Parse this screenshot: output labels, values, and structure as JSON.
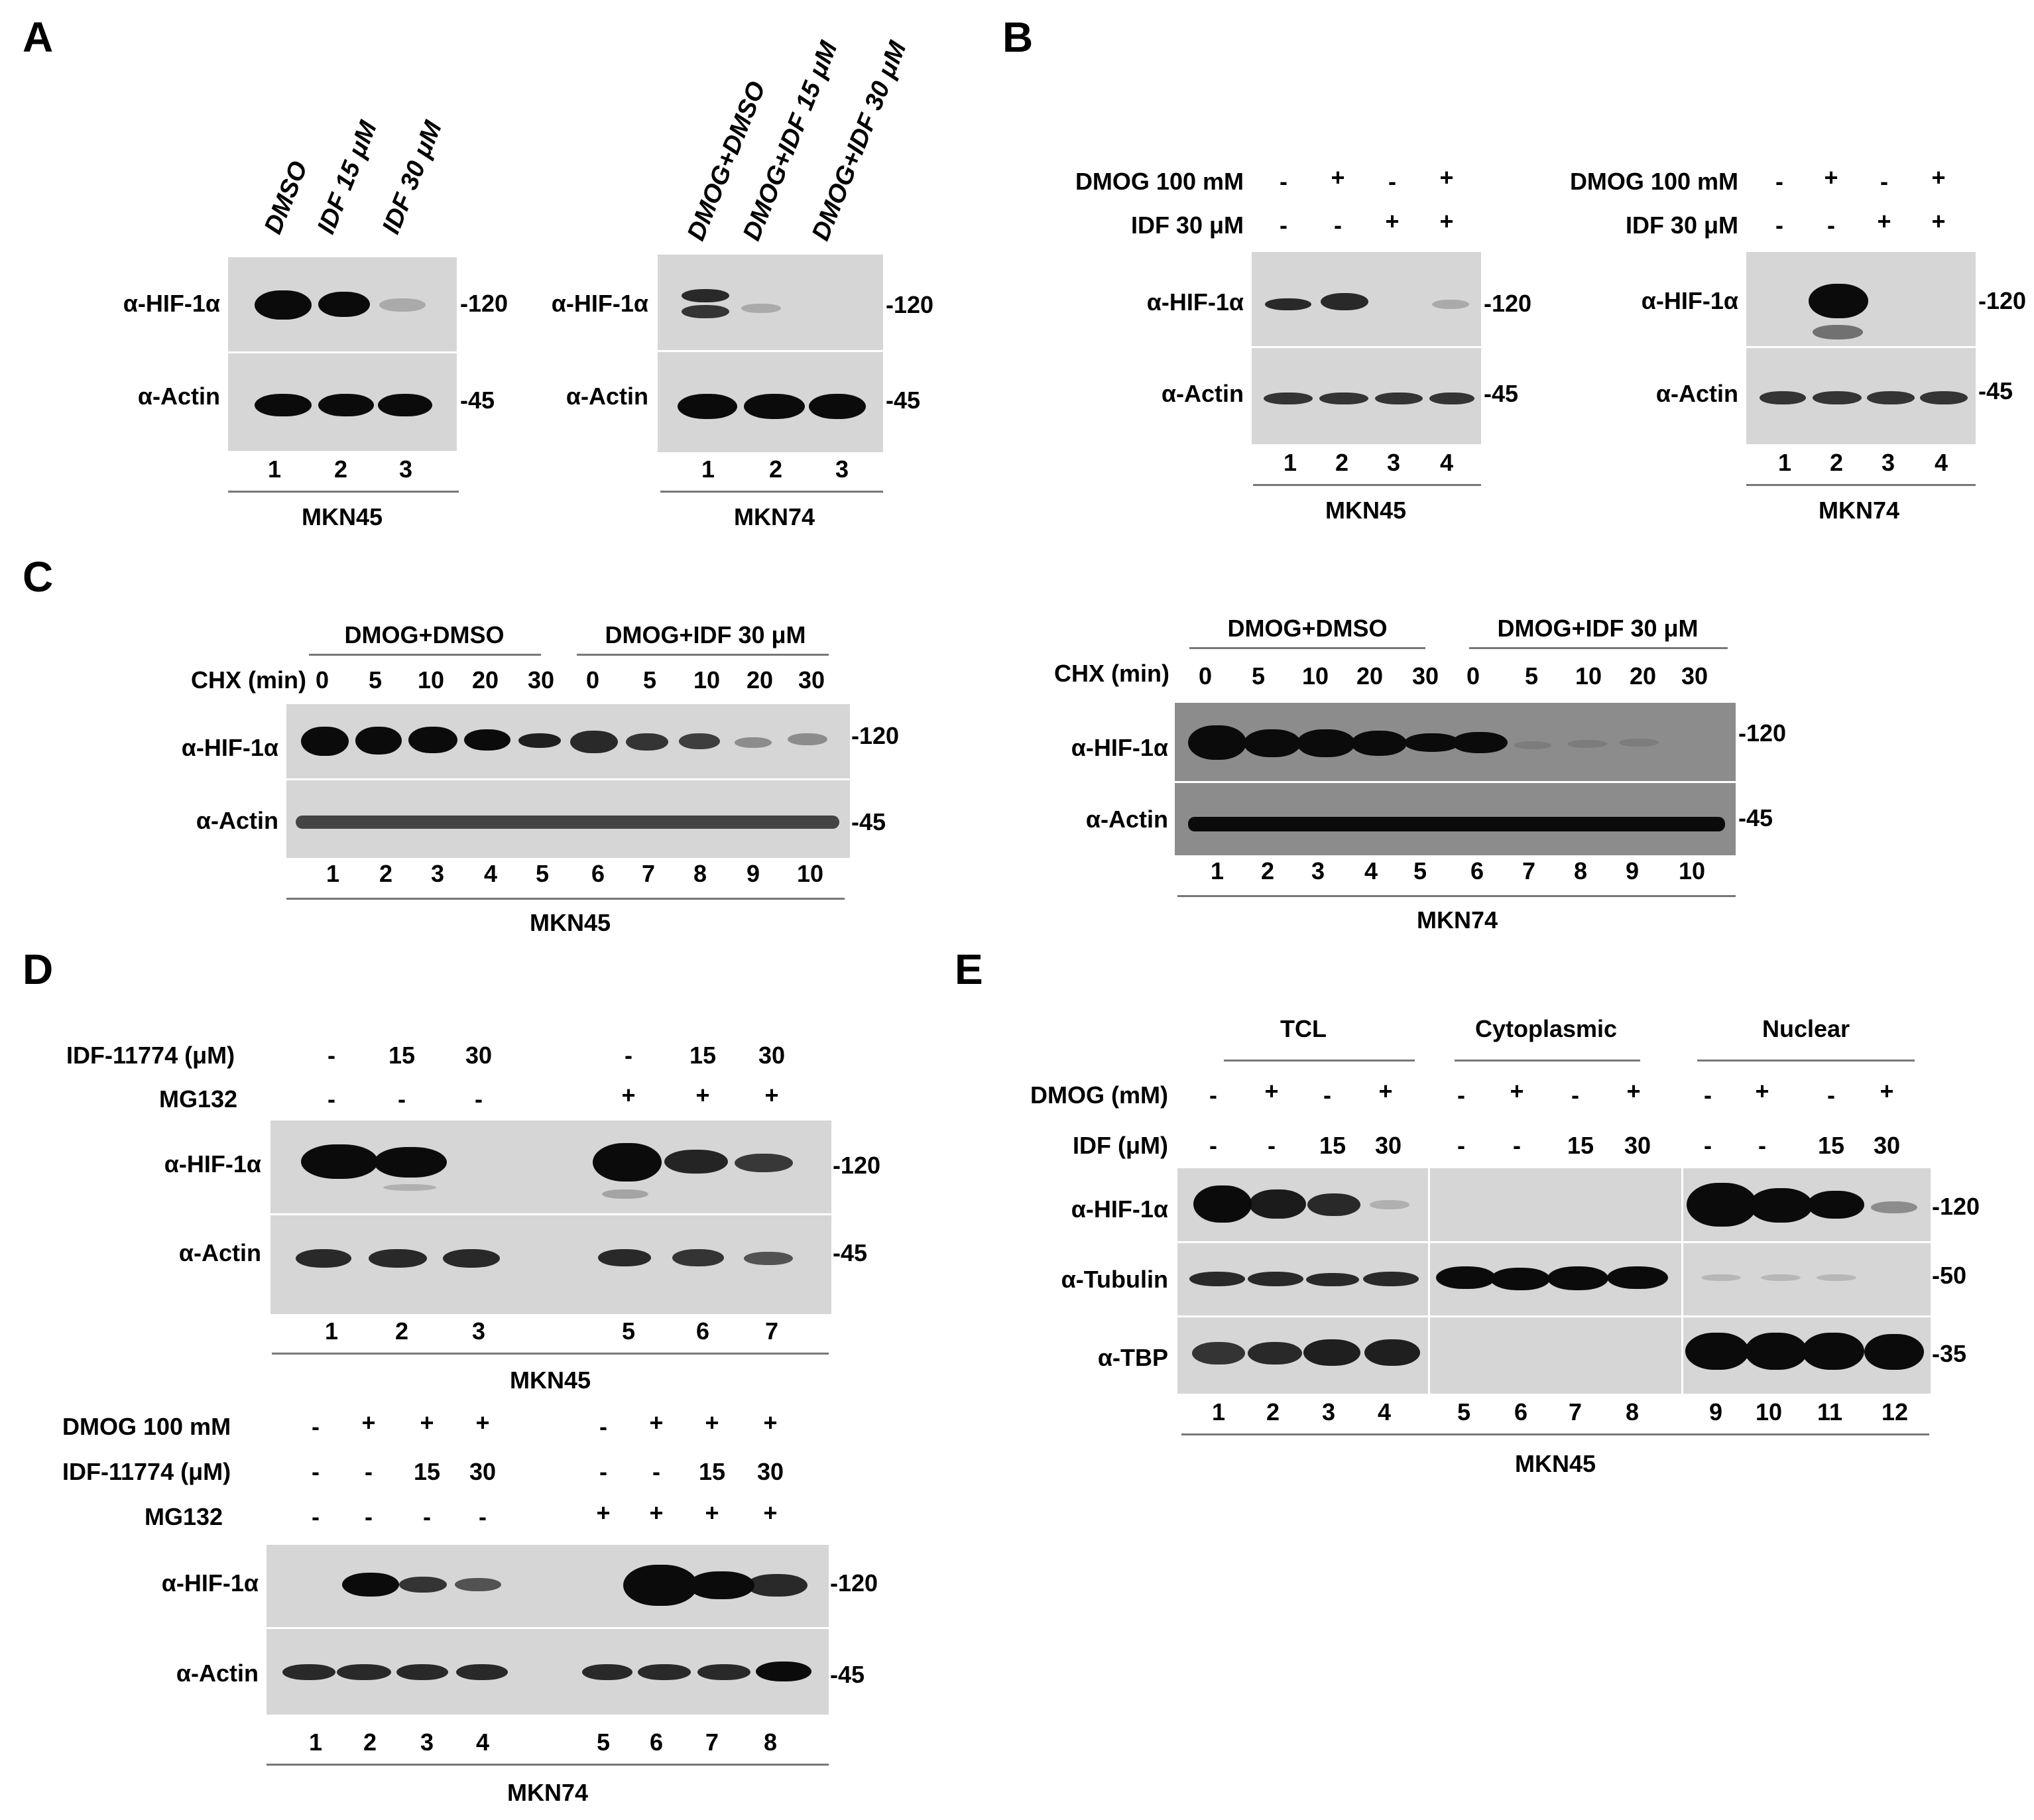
{
  "panels": {
    "A": "A",
    "B": "B",
    "C": "C",
    "D": "D",
    "E": "E"
  },
  "common": {
    "hif": "α-HIF-1α",
    "actin": "α-Actin",
    "tubulin": "α-Tubulin",
    "tbp": "α-TBP",
    "mw120": "-120",
    "mw45": "-45",
    "mw50": "-50",
    "mw35": "-35",
    "minus": "-",
    "plus": "+"
  },
  "A": {
    "left_lanes": [
      "DMSO",
      "IDF 15 μM",
      "IDF 30 μM"
    ],
    "right_lanes": [
      "DMOG+DMSO",
      "DMOG+IDF 15 μM",
      "DMOG+IDF 30 μM"
    ],
    "lane_numbers": [
      "1",
      "2",
      "3"
    ],
    "left_cell": "MKN45",
    "right_cell": "MKN74"
  },
  "B": {
    "dmog_label": "DMOG 100 mM",
    "idf_label": "IDF 30 μM",
    "dmog_signs": [
      "-",
      "+",
      "-",
      "+"
    ],
    "idf_signs": [
      "-",
      "-",
      "+",
      "+"
    ],
    "lane_numbers": [
      "1",
      "2",
      "3",
      "4"
    ],
    "left_cell": "MKN45",
    "right_cell": "MKN74"
  },
  "C": {
    "group1": "DMOG+DMSO",
    "group2": "DMOG+IDF 30 μM",
    "chx_label": "CHX (min)",
    "times": [
      "0",
      "5",
      "10",
      "20",
      "30",
      "0",
      "5",
      "10",
      "20",
      "30"
    ],
    "lane_numbers": [
      "1",
      "2",
      "3",
      "4",
      "5",
      "6",
      "7",
      "8",
      "9",
      "10"
    ],
    "left_cell": "MKN45",
    "right_cell": "MKN74"
  },
  "D": {
    "idf_label": "IDF-11774 (μM)",
    "mg_label": "MG132",
    "dmog_label": "DMOG 100 mM",
    "top_idf": [
      "-",
      "15",
      "30",
      "-",
      "15",
      "30"
    ],
    "top_mg": [
      "-",
      "-",
      "-",
      "+",
      "+",
      "+"
    ],
    "top_lanes": [
      "1",
      "2",
      "3",
      "5",
      "6",
      "7"
    ],
    "top_cell": "MKN45",
    "bot_dmog": [
      "-",
      "+",
      "+",
      "+",
      "-",
      "+",
      "+",
      "+"
    ],
    "bot_idf": [
      "-",
      "-",
      "15",
      "30",
      "-",
      "-",
      "15",
      "30"
    ],
    "bot_mg": [
      "-",
      "-",
      "-",
      "-",
      "+",
      "+",
      "+",
      "+"
    ],
    "bot_lanes": [
      "1",
      "2",
      "3",
      "4",
      "5",
      "6",
      "7",
      "8"
    ],
    "bot_cell": "MKN74"
  },
  "E": {
    "groups": [
      "TCL",
      "Cytoplasmic",
      "Nuclear"
    ],
    "dmog_label": "DMOG (mM)",
    "idf_label": "IDF (μM)",
    "dmog_signs": [
      "-",
      "+",
      "-",
      "+",
      "-",
      "+",
      "-",
      "+",
      "-",
      "+",
      "-",
      "+"
    ],
    "idf_signs": [
      "-",
      "-",
      "15",
      "30",
      "-",
      "-",
      "15",
      "30",
      "-",
      "-",
      "15",
      "30"
    ],
    "lane_numbers": [
      "1",
      "2",
      "3",
      "4",
      "5",
      "6",
      "7",
      "8",
      "9",
      "10",
      "11",
      "12"
    ],
    "cell": "MKN45"
  }
}
